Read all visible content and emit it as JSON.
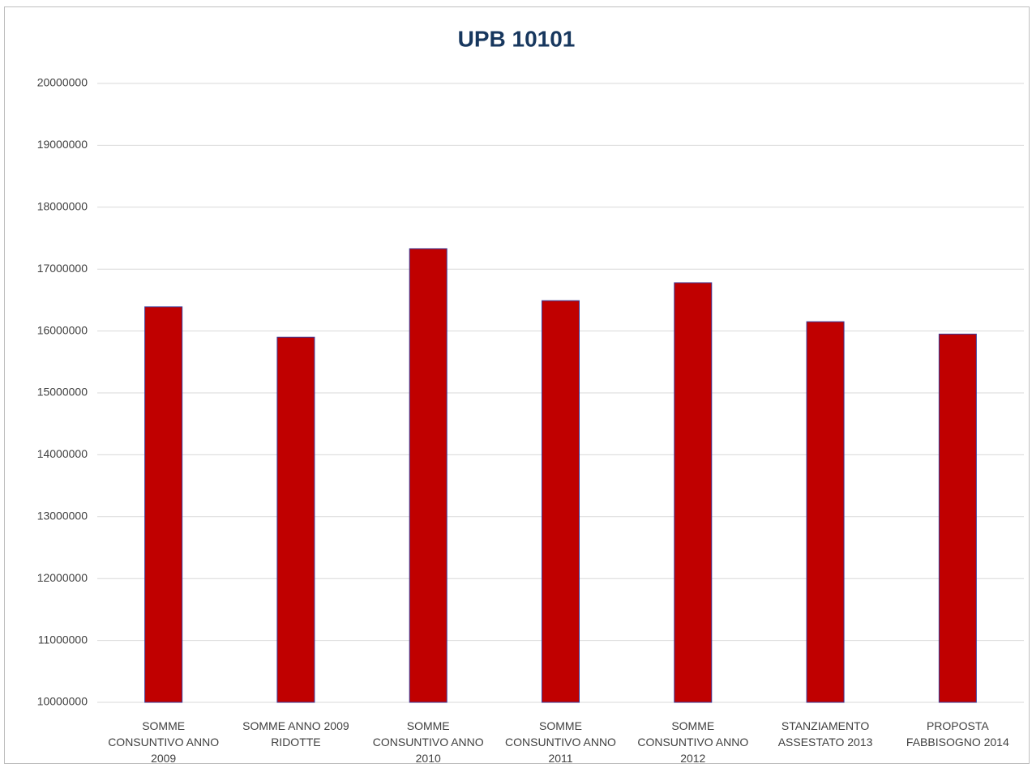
{
  "chart_data": {
    "type": "bar",
    "title": "UPB 10101",
    "categories": [
      "SOMME CONSUNTIVO ANNO 2009",
      "SOMME ANNO 2009 RIDOTTE",
      "SOMME CONSUNTIVO ANNO 2010",
      "SOMME CONSUNTIVO ANNO 2011",
      "SOMME CONSUNTIVO ANNO 2012",
      "STANZIAMENTO ASSESTATO 2013",
      "PROPOSTA FABBISOGNO 2014"
    ],
    "values": [
      16390000,
      15900000,
      17330000,
      16490000,
      16780000,
      16150000,
      15950000
    ],
    "color": "#c00000",
    "ylim": [
      10000000,
      20000000
    ],
    "yticks": [
      10000000,
      11000000,
      12000000,
      13000000,
      14000000,
      15000000,
      16000000,
      17000000,
      18000000,
      19000000,
      20000000
    ],
    "grid": true
  }
}
